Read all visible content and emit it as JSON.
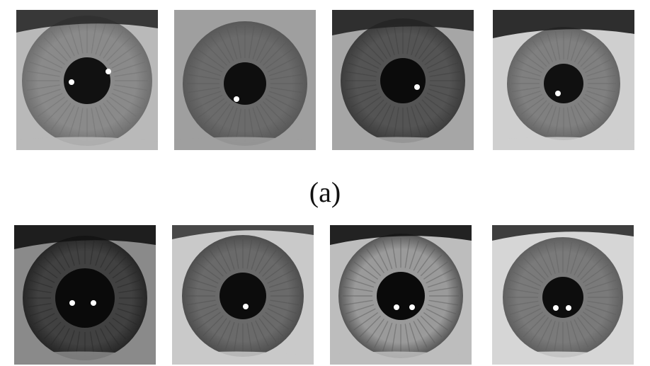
{
  "figure": {
    "caption_a": "(a)",
    "row_a": [
      {
        "name": "iris-a1",
        "sclera": "#b9b9b9",
        "iris": "#8a8a8a",
        "iris_edge": "#6e6e6e",
        "pupil": "#111111",
        "glints": 2,
        "lash": "#2a2a2a"
      },
      {
        "name": "iris-a2",
        "sclera": "#9f9f9f",
        "iris": "#6b6b6b",
        "iris_edge": "#585858",
        "pupil": "#0e0e0e",
        "glints": 1,
        "lash": "#555555"
      },
      {
        "name": "iris-a3",
        "sclera": "#a6a6a6",
        "iris": "#545454",
        "iris_edge": "#3c3c3c",
        "pupil": "#0b0b0b",
        "glints": 1,
        "lash": "#222222"
      },
      {
        "name": "iris-a4",
        "sclera": "#cfcfcf",
        "iris": "#808080",
        "iris_edge": "#666666",
        "pupil": "#101010",
        "glints": 1,
        "lash": "#1c1c1c"
      }
    ],
    "row_b": [
      {
        "name": "iris-b1",
        "sclera": "#8a8a8a",
        "iris": "#414141",
        "iris_edge": "#262626",
        "pupil": "#0a0a0a",
        "glints": 2,
        "lash": "#121212"
      },
      {
        "name": "iris-b2",
        "sclera": "#c9c9c9",
        "iris": "#6a6a6a",
        "iris_edge": "#4e4e4e",
        "pupil": "#0c0c0c",
        "glints": 1,
        "lash": "#3a3a3a"
      },
      {
        "name": "iris-b3",
        "sclera": "#bdbdbd",
        "iris": "#9a9a9a",
        "iris_edge": "#575757",
        "pupil": "#0a0a0a",
        "glints": 2,
        "lash": "#111111"
      },
      {
        "name": "iris-b4",
        "sclera": "#d6d6d6",
        "iris": "#7a7a7a",
        "iris_edge": "#5f5f5f",
        "pupil": "#0d0d0d",
        "glints": 2,
        "lash": "#2e2e2e"
      }
    ]
  }
}
